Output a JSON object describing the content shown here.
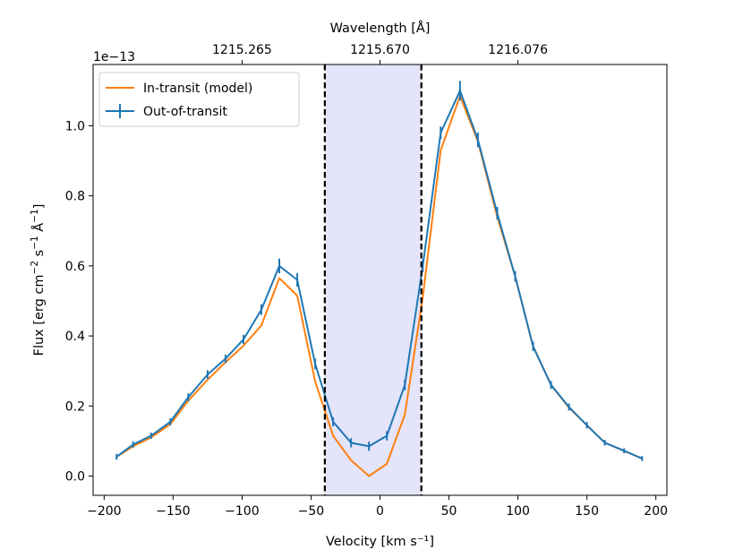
{
  "chart_data": {
    "type": "line",
    "title": "",
    "top_axis_label": "Wavelength [Å]",
    "xlabel": "Velocity [km s⁻¹]",
    "ylabel_parts": [
      "Flux [erg cm",
      "−2",
      " s",
      "−1",
      " Å",
      "−1",
      "]"
    ],
    "offset_text": "1e−13",
    "xlim": [
      -208,
      208
    ],
    "ylim": [
      -0.055,
      1.175
    ],
    "x_ticks": [
      -200,
      -150,
      -100,
      -50,
      0,
      50,
      100,
      150,
      200
    ],
    "x_tick_labels": [
      "−200",
      "−150",
      "−100",
      "−50",
      "0",
      "50",
      "100",
      "150",
      "200"
    ],
    "y_ticks": [
      0.0,
      0.2,
      0.4,
      0.6,
      0.8,
      1.0
    ],
    "y_tick_labels": [
      "0.0",
      "0.2",
      "0.4",
      "0.6",
      "0.8",
      "1.0"
    ],
    "top_ticks": [
      {
        "velocity": -100,
        "label": "1215.265"
      },
      {
        "velocity": 0,
        "label": "1215.670"
      },
      {
        "velocity": 100,
        "label": "1216.076"
      }
    ],
    "shaded_region": {
      "x_start": -40,
      "x_end": 30,
      "color": "#e4e4fa"
    },
    "vlines": [
      -40,
      30
    ],
    "legend": {
      "position": "upper-left",
      "entries": [
        "In-transit (model)",
        "Out-of-transit"
      ]
    },
    "series": [
      {
        "name": "In-transit (model)",
        "color": "#ff7f0e",
        "x": [
          -191,
          -179,
          -166,
          -152,
          -139,
          -125,
          -112,
          -99,
          -86,
          -73,
          -60,
          -47,
          -34,
          -21,
          -8,
          5,
          18,
          31,
          44,
          58,
          71,
          85,
          98,
          111,
          124,
          137,
          150,
          163,
          177,
          190
        ],
        "y": [
          0.055,
          0.085,
          0.11,
          0.148,
          0.215,
          0.275,
          0.325,
          0.372,
          0.43,
          0.565,
          0.515,
          0.27,
          0.115,
          0.045,
          0.0,
          0.035,
          0.175,
          0.51,
          0.93,
          1.085,
          0.955,
          0.74,
          0.57,
          0.37,
          0.26,
          0.195,
          0.145,
          0.095,
          0.072,
          0.05
        ]
      },
      {
        "name": "Out-of-transit",
        "color": "#1f77b4",
        "x": [
          -191,
          -179,
          -166,
          -152,
          -139,
          -125,
          -112,
          -99,
          -86,
          -73,
          -60,
          -47,
          -34,
          -21,
          -8,
          5,
          18,
          31,
          44,
          58,
          71,
          85,
          98,
          111,
          124,
          137,
          150,
          163,
          177,
          190
        ],
        "y": [
          0.055,
          0.09,
          0.115,
          0.155,
          0.225,
          0.29,
          0.335,
          0.39,
          0.475,
          0.6,
          0.56,
          0.32,
          0.155,
          0.095,
          0.085,
          0.115,
          0.26,
          0.6,
          0.98,
          1.1,
          0.96,
          0.75,
          0.57,
          0.37,
          0.26,
          0.197,
          0.145,
          0.095,
          0.072,
          0.05
        ],
        "yerr": [
          0.005,
          0.006,
          0.006,
          0.007,
          0.008,
          0.009,
          0.009,
          0.01,
          0.012,
          0.018,
          0.016,
          0.012,
          0.01,
          0.01,
          0.01,
          0.01,
          0.012,
          0.015,
          0.015,
          0.025,
          0.018,
          0.015,
          0.012,
          0.01,
          0.008,
          0.007,
          0.006,
          0.005,
          0.004,
          0.004
        ]
      }
    ]
  }
}
